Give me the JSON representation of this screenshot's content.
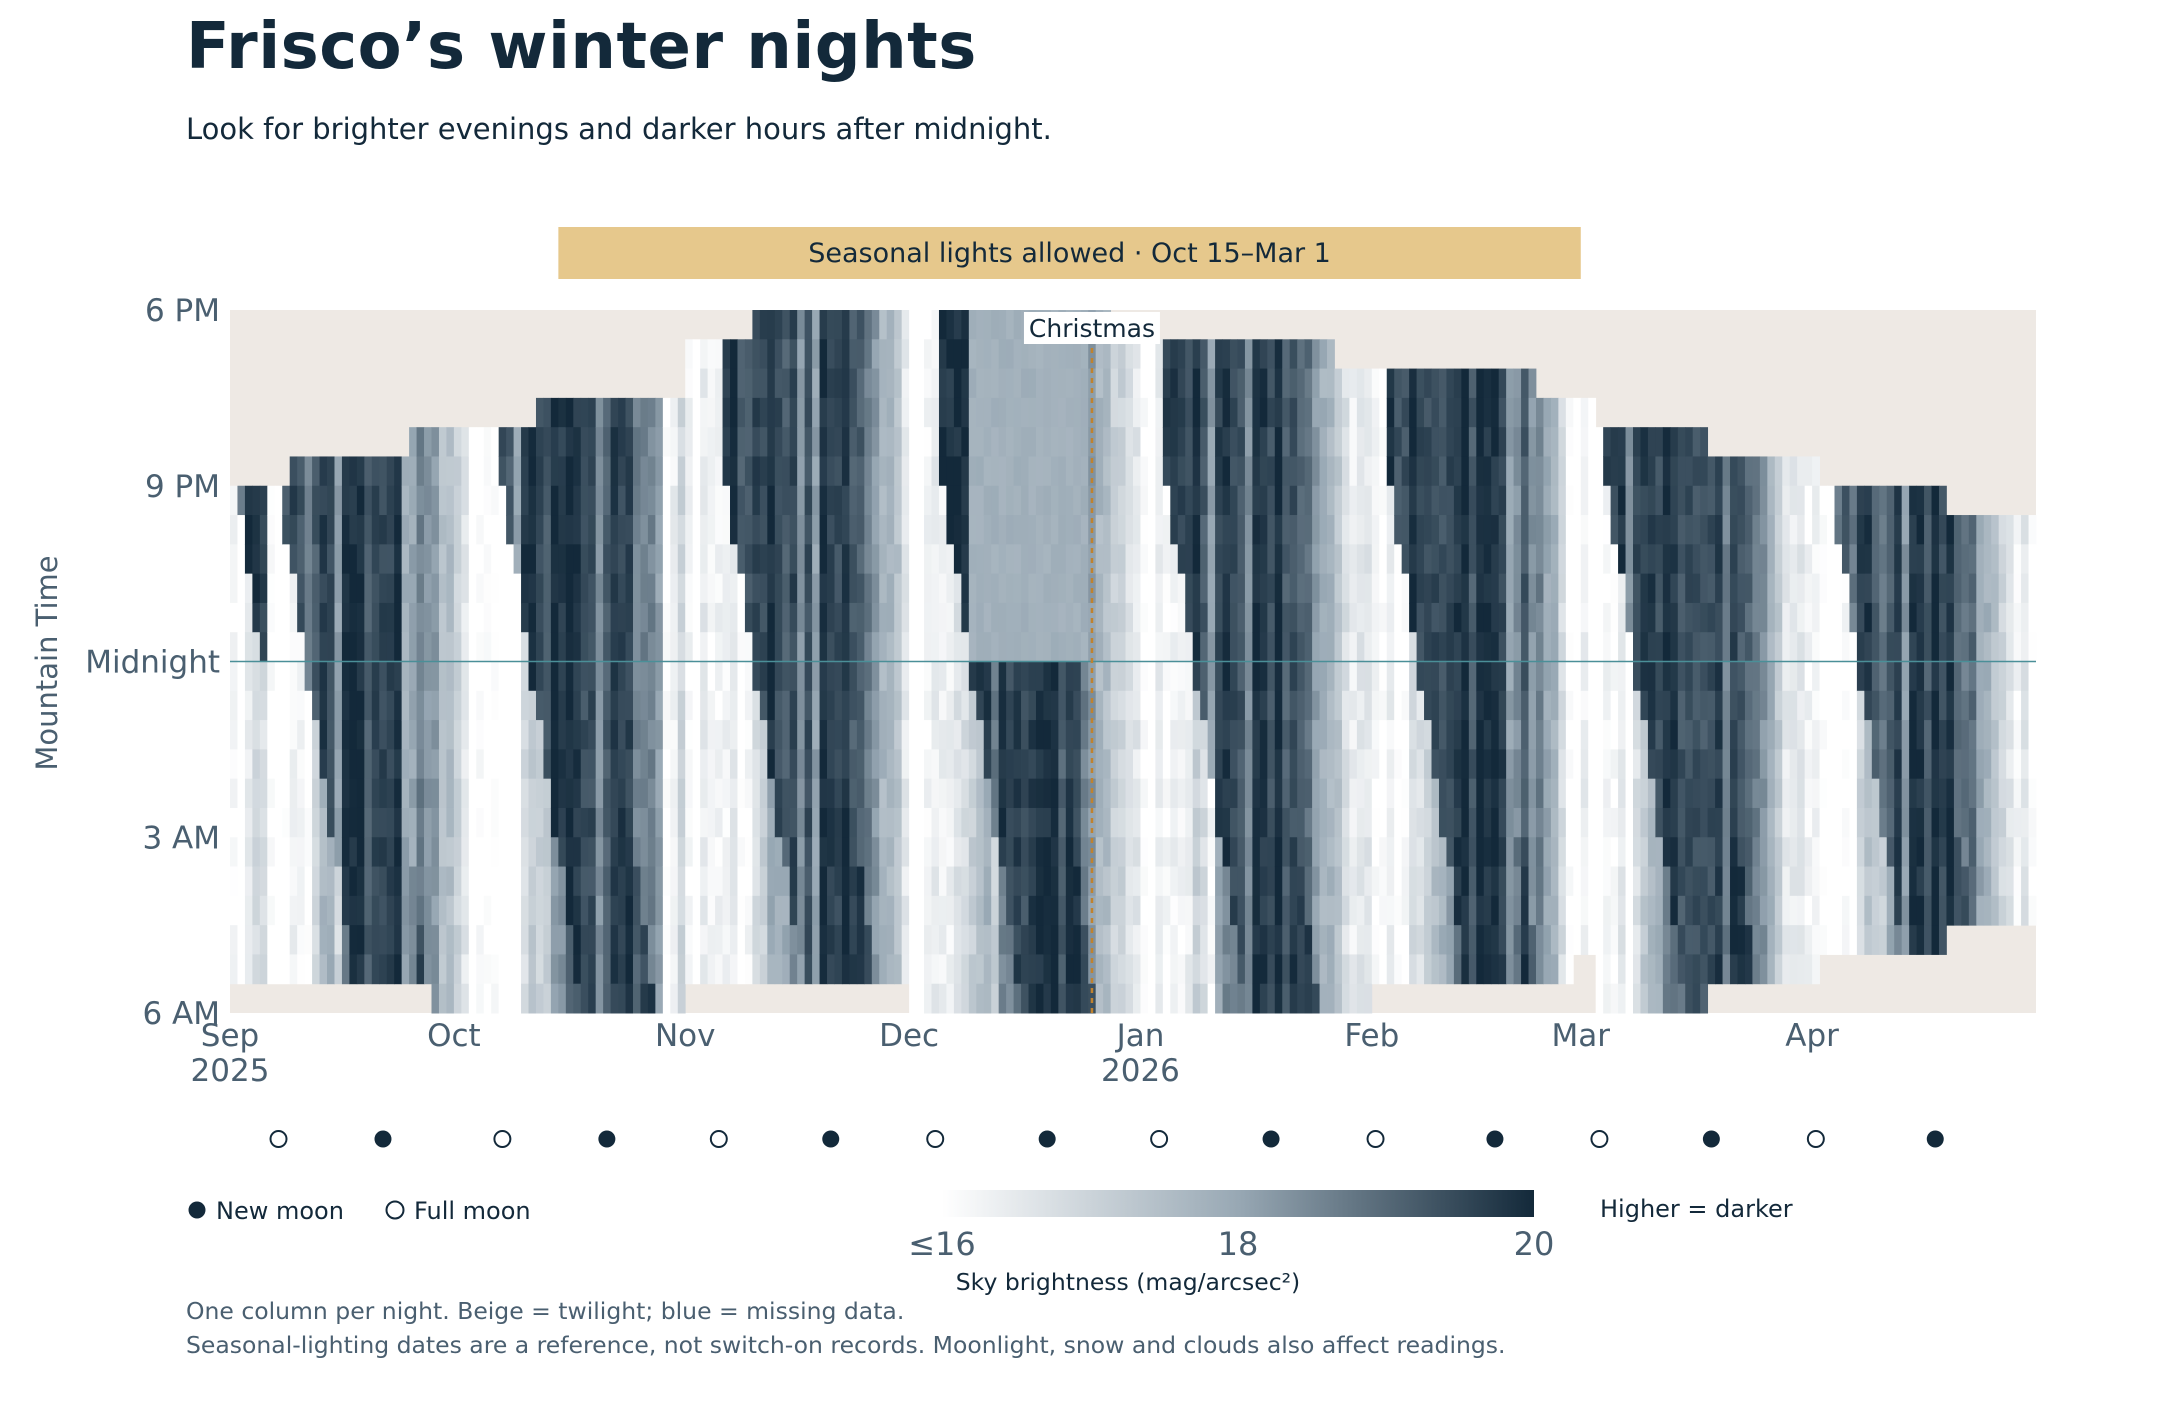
{
  "title": "Frisco’s winter nights",
  "subtitle": "Look for brighter evenings and darker hours after midnight.",
  "footer": {
    "line1": "One column per night. Beige = twilight; blue = missing data.",
    "line2": "Seasonal-lighting dates are a reference, not switch-on records. Moonlight, snow and clouds also affect readings."
  },
  "colors": {
    "twilight": "#eee9e4",
    "seasonal_band": "#e6c88c",
    "midnight_line": "#4a8f98",
    "christmas_line": "#c0822e",
    "scale_light": "#ffffff",
    "scale_dark": "#13293a",
    "text_dark": "#13293a",
    "text_muted": "#4a5f70"
  },
  "chart_data": {
    "type": "heatmap",
    "ylabel": "Mountain Time",
    "y_ticks": [
      "6 PM",
      "9 PM",
      "Midnight",
      "3 AM",
      "6 AM"
    ],
    "y_range_hours": [
      18,
      30
    ],
    "x_range": [
      "2025-09-01",
      "2026-04-30"
    ],
    "x_ticks": [
      {
        "date": "2025-09-01",
        "label": "Sep",
        "year": "2025"
      },
      {
        "date": "2025-10-01",
        "label": "Oct",
        "year": ""
      },
      {
        "date": "2025-11-01",
        "label": "Nov",
        "year": ""
      },
      {
        "date": "2025-12-01",
        "label": "Dec",
        "year": ""
      },
      {
        "date": "2026-01-01",
        "label": "Jan",
        "year": "2026"
      },
      {
        "date": "2026-02-01",
        "label": "Feb",
        "year": ""
      },
      {
        "date": "2026-03-01",
        "label": "Mar",
        "year": ""
      },
      {
        "date": "2026-04-01",
        "label": "Apr",
        "year": ""
      }
    ],
    "seasonal_band": {
      "label": "Seasonal lights allowed · Oct 15–Mar 1",
      "start": "2025-10-15",
      "end": "2026-03-01"
    },
    "annotation": {
      "label": "Christmas",
      "date": "2025-12-25"
    },
    "midnight_line": true,
    "value_unit": "mag/arcsec²",
    "colorbar": {
      "label": "Sky brightness (mag/arcsec²)",
      "min": 16,
      "max": 20,
      "ticks": [
        "≤16",
        "18",
        "20"
      ],
      "note": "Higher = darker"
    },
    "dark_window_hours": [
      {
        "from": "2025-09-01",
        "start": 21,
        "end": 29.5
      },
      {
        "from": "2025-09-09",
        "start": 20.5,
        "end": 29.5
      },
      {
        "from": "2025-09-25",
        "start": 20,
        "end": 29.5
      },
      {
        "from": "2025-09-28",
        "start": 20,
        "end": 30
      },
      {
        "from": "2025-10-12",
        "start": 19.5,
        "end": 30
      },
      {
        "from": "2025-11-01",
        "start": 18.5,
        "end": 29.5
      },
      {
        "from": "2025-11-10",
        "start": 18,
        "end": 29.5
      },
      {
        "from": "2025-12-01",
        "start": 18,
        "end": 30
      },
      {
        "from": "2025-12-28",
        "start": 18.5,
        "end": 30
      },
      {
        "from": "2026-01-27",
        "start": 19,
        "end": 30
      },
      {
        "from": "2026-02-01",
        "start": 19,
        "end": 29.5
      },
      {
        "from": "2026-02-23",
        "start": 19.5,
        "end": 29.5
      },
      {
        "from": "2026-02-28",
        "start": 19.5,
        "end": 29
      },
      {
        "from": "2026-03-03",
        "start": 20,
        "end": 30
      },
      {
        "from": "2026-03-18",
        "start": 20.5,
        "end": 29.5
      },
      {
        "from": "2026-04-02",
        "start": 21,
        "end": 29
      },
      {
        "from": "2026-04-19",
        "start": 21.5,
        "end": 28.5
      }
    ],
    "missing_data_range": [
      "2025-12-09",
      "2025-12-24"
    ],
    "moon_phases": [
      {
        "date": "2025-09-07",
        "phase": "full"
      },
      {
        "date": "2025-09-21",
        "phase": "new"
      },
      {
        "date": "2025-10-07",
        "phase": "full"
      },
      {
        "date": "2025-10-21",
        "phase": "new"
      },
      {
        "date": "2025-11-05",
        "phase": "full"
      },
      {
        "date": "2025-11-20",
        "phase": "new"
      },
      {
        "date": "2025-12-04",
        "phase": "full"
      },
      {
        "date": "2025-12-19",
        "phase": "new"
      },
      {
        "date": "2026-01-03",
        "phase": "full"
      },
      {
        "date": "2026-01-18",
        "phase": "new"
      },
      {
        "date": "2026-02-01",
        "phase": "full"
      },
      {
        "date": "2026-02-17",
        "phase": "new"
      },
      {
        "date": "2026-03-03",
        "phase": "full"
      },
      {
        "date": "2026-03-18",
        "phase": "new"
      },
      {
        "date": "2026-04-01",
        "phase": "full"
      },
      {
        "date": "2026-04-17",
        "phase": "new"
      }
    ],
    "legend": {
      "new_moon": "New moon",
      "full_moon": "Full moon"
    }
  }
}
